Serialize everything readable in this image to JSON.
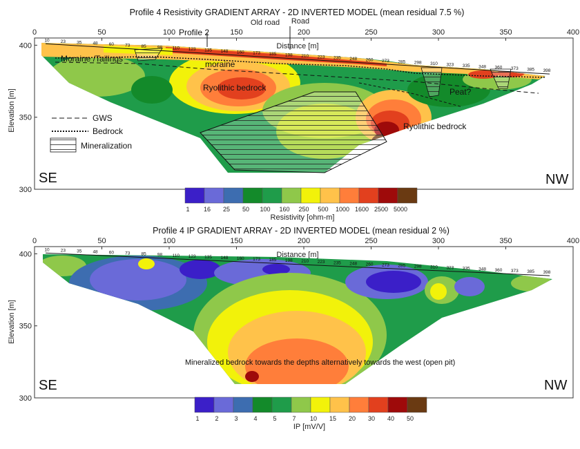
{
  "chart_data": [
    {
      "type": "heatmap",
      "title": "Profile 4 Resistivity GRADIENT ARRAY - 2D INVERTED MODEL (mean residual 7.5 %)",
      "xlabel": "Distance [m]",
      "ylabel": "Elevation [m]",
      "xlim": [
        0,
        400
      ],
      "ylim": [
        300,
        405
      ],
      "x_ticks": [
        "0",
        "50",
        "100",
        "150",
        "200",
        "250",
        "300",
        "350",
        "400"
      ],
      "y_ticks": [
        "400",
        "350",
        "300"
      ],
      "electrode_labels": [
        "10",
        "23",
        "35",
        "48",
        "60",
        "73",
        "85",
        "98",
        "110",
        "123",
        "135",
        "148",
        "160",
        "173",
        "185",
        "198",
        "210",
        "223",
        "235",
        "248",
        "260",
        "273",
        "285",
        "298",
        "310",
        "323",
        "335",
        "348",
        "360",
        "373",
        "385",
        "398"
      ],
      "legend_title": "Resistivity [ohm-m]",
      "legend_values": [
        "1",
        "16",
        "25",
        "50",
        "100",
        "160",
        "250",
        "500",
        "1000",
        "1600",
        "2500",
        "5000"
      ],
      "legend_colors": [
        "#3b1fc8",
        "#6a6ad8",
        "#3d6db0",
        "#138a2a",
        "#1f9c4a",
        "#8fc84a",
        "#f2f20a",
        "#ffc24a",
        "#ff7e3a",
        "#e2401e",
        "#9e0a0a",
        "#6a3a12"
      ],
      "annotations": {
        "moraine_tailings": "Moraine /Tailings",
        "moraine": "moraine",
        "ryolithic_left": "Ryolithic bedrock",
        "ryolithic_right": "Ryolithic bedrock",
        "peat": "Peat?",
        "profile2": "Profile 2",
        "old_road": "Old road",
        "road": "Road",
        "se": "SE",
        "nw": "NW"
      },
      "key": {
        "gws": "GWS",
        "bedrock": "Bedrock",
        "mineralization": "Mineralization"
      }
    },
    {
      "type": "heatmap",
      "title": "Profile 4 IP GRADIENT ARRAY - 2D INVERTED MODEL (mean residual 2 %)",
      "xlabel": "Distance [m]",
      "ylabel": "Elevation [m]",
      "xlim": [
        0,
        400
      ],
      "ylim": [
        300,
        405
      ],
      "x_ticks": [
        "0",
        "50",
        "100",
        "150",
        "200",
        "250",
        "300",
        "350",
        "400"
      ],
      "y_ticks": [
        "400",
        "350",
        "300"
      ],
      "electrode_labels": [
        "10",
        "23",
        "35",
        "48",
        "60",
        "73",
        "85",
        "98",
        "110",
        "123",
        "135",
        "148",
        "160",
        "173",
        "185",
        "198",
        "210",
        "223",
        "235",
        "248",
        "260",
        "273",
        "285",
        "298",
        "310",
        "323",
        "335",
        "348",
        "360",
        "373",
        "385",
        "398"
      ],
      "legend_title": "IP [mV/V]",
      "legend_values": [
        "1",
        "2",
        "3",
        "4",
        "5",
        "7",
        "10",
        "15",
        "20",
        "30",
        "40",
        "50"
      ],
      "legend_colors": [
        "#3b1fc8",
        "#6a6ad8",
        "#3d6db0",
        "#138a2a",
        "#1f9c4a",
        "#8fc84a",
        "#f2f20a",
        "#ffc24a",
        "#ff7e3a",
        "#e2401e",
        "#9e0a0a",
        "#6a3a12"
      ],
      "annotations": {
        "note": "Mineralized bedrock towards the depths alternatively towards the west (open pit)",
        "se": "SE",
        "nw": "NW"
      }
    }
  ]
}
